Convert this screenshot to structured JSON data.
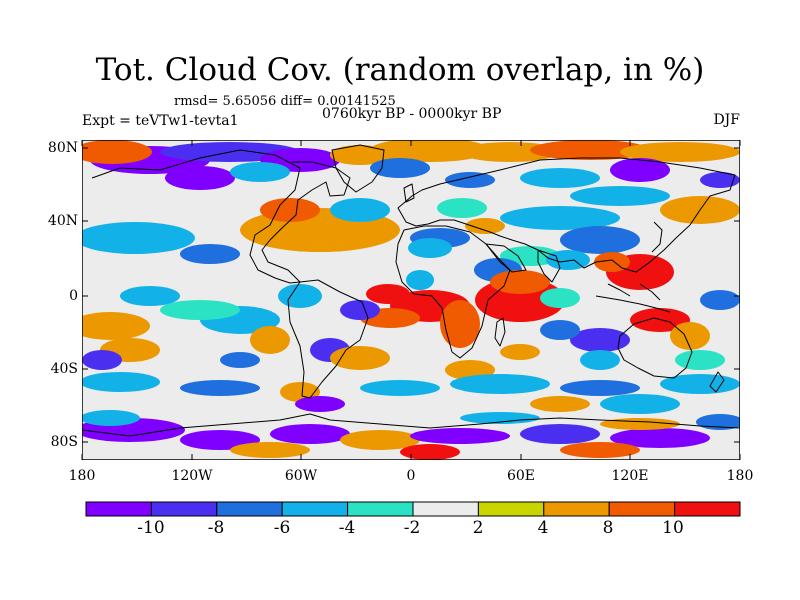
{
  "title": "Tot. Cloud Cov. (random overlap, in %)",
  "stats": "rmsd= 5.65056  diff= 0.00141525",
  "experiment": "Expt = teVTw1-tevta1",
  "period": "0760kyr BP - 0000kyr BP",
  "season": "DJF",
  "axes": {
    "lat_ticks": [
      "80N",
      "40N",
      "0",
      "40S",
      "80S"
    ],
    "lon_ticks": [
      "180",
      "120W",
      "60W",
      "0",
      "60E",
      "120E",
      "180"
    ]
  },
  "colorbar": {
    "labels": [
      "-10",
      "-8",
      "-6",
      "-4",
      "-2",
      "2",
      "4",
      "8",
      "10"
    ],
    "colors": [
      "#7f00ff",
      "#4a2ff0",
      "#1f6fde",
      "#12b2e8",
      "#2ce2c4",
      "#ececec",
      "#c9d400",
      "#ec9800",
      "#f05a00",
      "#f01010"
    ]
  },
  "palette": {
    "ocean_neutral": "#ececec",
    "coastline": "#000000"
  }
}
